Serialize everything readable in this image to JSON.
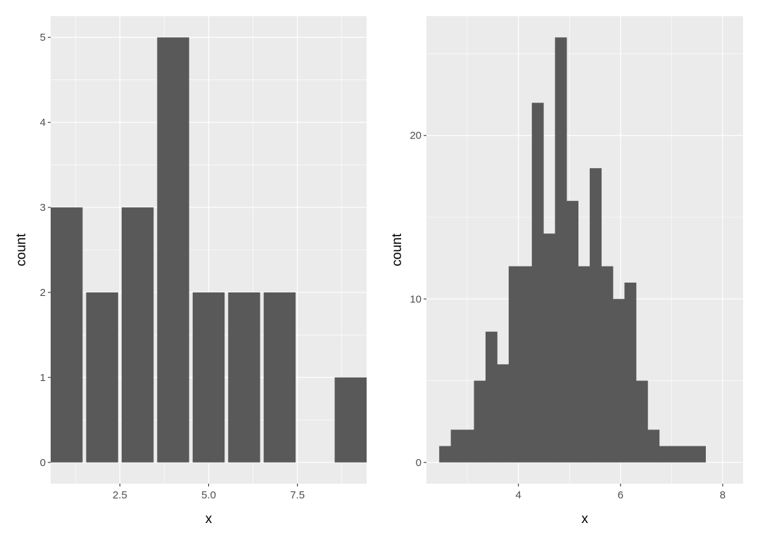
{
  "chart_data": [
    {
      "type": "bar",
      "xlabel": "x",
      "ylabel": "count",
      "x": [
        1,
        2,
        3,
        4,
        5,
        6,
        7,
        9
      ],
      "values": [
        3,
        2,
        3,
        5,
        2,
        2,
        2,
        1
      ],
      "bar_width": 0.9,
      "xlim": [
        0.55,
        9.45
      ],
      "ylim": [
        -0.25,
        5.25
      ],
      "xticks": [
        2.5,
        5.0,
        7.5
      ],
      "xtick_labels": [
        "2.5",
        "5.0",
        "7.5"
      ],
      "yticks": [
        0,
        1,
        2,
        3,
        4,
        5
      ],
      "ytick_labels": [
        "0",
        "1",
        "2",
        "3",
        "4",
        "5"
      ],
      "grid": true,
      "colors": {
        "panel": "#EBEBEB",
        "grid": "#FFFFFF",
        "bar": "#595959"
      }
    },
    {
      "type": "bar",
      "subtype": "histogram",
      "xlabel": "x",
      "ylabel": "count",
      "bin_start": 2.45,
      "bin_width": 0.2267,
      "values": [
        1,
        2,
        2,
        5,
        8,
        6,
        12,
        12,
        22,
        14,
        26,
        16,
        12,
        18,
        12,
        10,
        11,
        5,
        2,
        1,
        1,
        1,
        1
      ],
      "xlim": [
        2.2,
        8.4
      ],
      "ylim": [
        -1.3,
        27.3
      ],
      "xticks": [
        4,
        6,
        8
      ],
      "xtick_labels": [
        "4",
        "6",
        "8"
      ],
      "yticks": [
        0,
        10,
        20
      ],
      "ytick_labels": [
        "0",
        "10",
        "20"
      ],
      "grid": true,
      "colors": {
        "panel": "#EBEBEB",
        "grid": "#FFFFFF",
        "bar": "#595959"
      }
    }
  ]
}
